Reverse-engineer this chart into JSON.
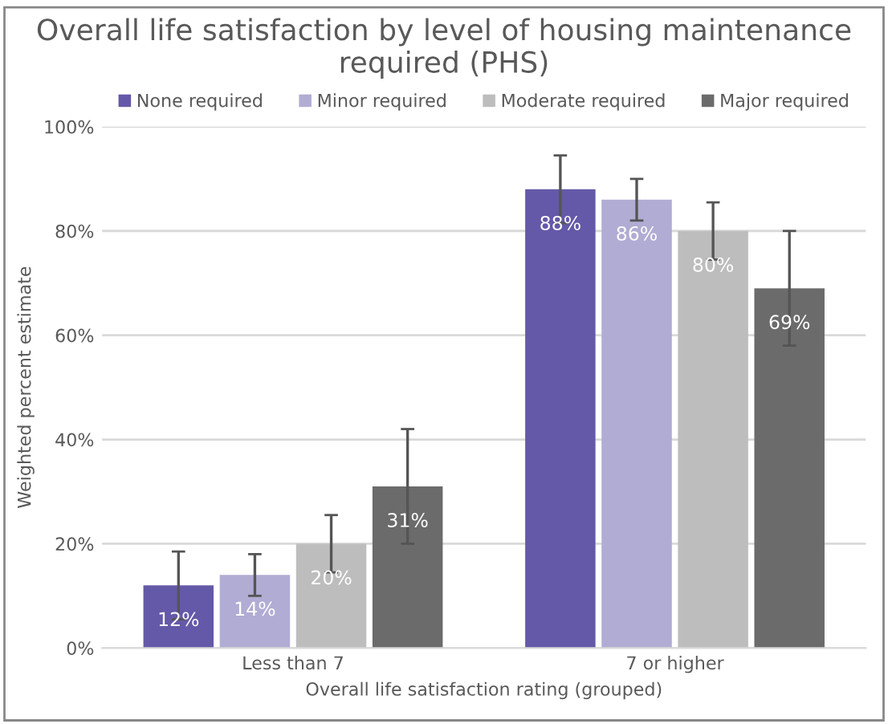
{
  "chart_data": {
    "type": "bar",
    "title": "Overall life satisfaction by level of housing maintenance required (PHS)",
    "xlabel": "Overall life satisfaction rating (grouped)",
    "ylabel": "Weighted percent estimate",
    "categories": [
      "Less than 7",
      "7 or higher"
    ],
    "series": [
      {
        "name": "None required",
        "color": "#6459a8",
        "values": [
          12,
          88
        ],
        "errors": [
          6.5,
          6.5
        ],
        "value_labels": [
          "12%",
          "88%"
        ]
      },
      {
        "name": "Minor required",
        "color": "#b0acd4",
        "values": [
          14,
          86
        ],
        "errors": [
          4,
          4
        ],
        "value_labels": [
          "14%",
          "86%"
        ]
      },
      {
        "name": "Moderate required",
        "color": "#bdbdbd",
        "values": [
          20,
          80
        ],
        "errors": [
          5.5,
          5.5
        ],
        "value_labels": [
          "20%",
          "80%"
        ]
      },
      {
        "name": "Major required",
        "color": "#6b6b6b",
        "values": [
          31,
          69
        ],
        "errors": [
          11,
          11
        ],
        "value_labels": [
          "31%",
          "69%"
        ]
      }
    ],
    "ylim": [
      0,
      100
    ],
    "yticks": [
      {
        "value": 0,
        "label": "0%"
      },
      {
        "value": 20,
        "label": "20%"
      },
      {
        "value": 40,
        "label": "40%"
      },
      {
        "value": 60,
        "label": "60%"
      },
      {
        "value": 80,
        "label": "80%"
      },
      {
        "value": 100,
        "label": "100%"
      }
    ],
    "grid": "y",
    "legend": "top"
  }
}
